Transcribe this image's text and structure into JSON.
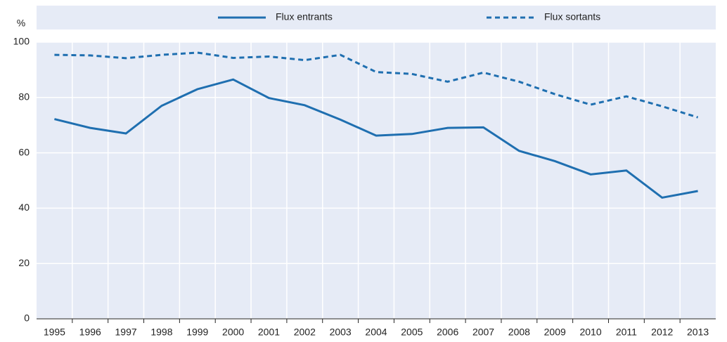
{
  "chart_data": {
    "type": "line",
    "y_label": "%",
    "categories": [
      "1995",
      "1996",
      "1997",
      "1998",
      "1999",
      "2000",
      "2001",
      "2002",
      "2003",
      "2004",
      "2005",
      "2006",
      "2007",
      "2008",
      "2009",
      "2010",
      "2011",
      "2012",
      "2013"
    ],
    "series": [
      {
        "name": "Flux entrants",
        "color": "#1f6fb0",
        "dash": false,
        "values": [
          72.2,
          69,
          67,
          77,
          83,
          86.5,
          79.8,
          77.2,
          72,
          66.2,
          66.8,
          69,
          69.2,
          60.7,
          57,
          52.2,
          53.6,
          43.8,
          46.2
        ]
      },
      {
        "name": "Flux sortants",
        "color": "#1f6fb0",
        "dash": true,
        "values": [
          95.4,
          95.2,
          94.2,
          95.4,
          96.2,
          94.3,
          94.8,
          93.5,
          95.4,
          89.2,
          88.5,
          85.7,
          89,
          85.7,
          81.2,
          77.4,
          80.4,
          76.8,
          72.8
        ]
      }
    ],
    "ylim": [
      0,
      100
    ],
    "yticks": [
      0,
      20,
      40,
      60,
      80,
      100
    ],
    "grid": true,
    "legend": "top"
  }
}
